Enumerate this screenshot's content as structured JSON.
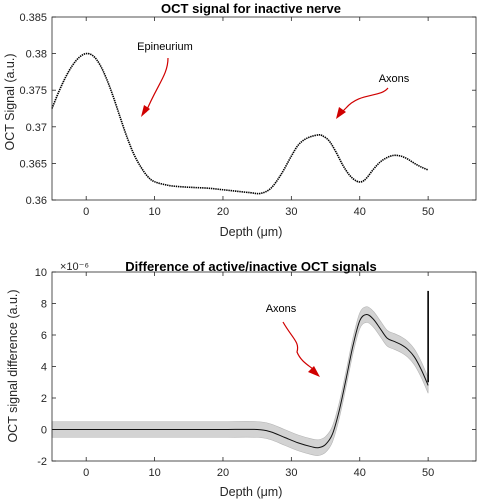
{
  "chart_data": [
    {
      "type": "line",
      "title": "OCT signal for inactive nerve",
      "xlabel": "Depth (μm)",
      "ylabel": "OCT Signal (a.u.)",
      "xlim": [
        -5,
        57
      ],
      "ylim": [
        0.36,
        0.385
      ],
      "xticks": [
        0,
        10,
        20,
        30,
        40,
        50
      ],
      "yticks": [
        0.36,
        0.365,
        0.37,
        0.375,
        0.38,
        0.385
      ],
      "ytick_labels": [
        "0.36",
        "0.365",
        "0.37",
        "0.375",
        "0.38",
        "0.385"
      ],
      "series": [
        {
          "x": [
            -5,
            -4,
            -3,
            -2,
            -1,
            0,
            1,
            2,
            3,
            4,
            5,
            6,
            7,
            8,
            9,
            10,
            12,
            14,
            16,
            18,
            20,
            22,
            24,
            25.5,
            27,
            28.5,
            30,
            31,
            32,
            33,
            34,
            34.5,
            35.5,
            36.5,
            37.5,
            38.5,
            39.5,
            40.3,
            41,
            42,
            43,
            44,
            45,
            46,
            47,
            48,
            49,
            50
          ],
          "values": [
            0.3725,
            0.3748,
            0.3768,
            0.3784,
            0.3795,
            0.38,
            0.3797,
            0.3785,
            0.3765,
            0.374,
            0.3712,
            0.3685,
            0.3662,
            0.3645,
            0.3632,
            0.3625,
            0.362,
            0.3618,
            0.3617,
            0.3616,
            0.3614,
            0.3612,
            0.361,
            0.3609,
            0.3616,
            0.3635,
            0.366,
            0.3675,
            0.3683,
            0.3687,
            0.3689,
            0.3688,
            0.3681,
            0.3666,
            0.3648,
            0.3634,
            0.3626,
            0.3625,
            0.363,
            0.3642,
            0.3652,
            0.3658,
            0.3661,
            0.366,
            0.3656,
            0.365,
            0.3645,
            0.3641
          ]
        }
      ],
      "annotations": [
        {
          "text": "Epineurium",
          "x": 8,
          "y": 0.3798
        },
        {
          "text": "Axons",
          "x": 43.5,
          "y": 0.3754
        }
      ]
    },
    {
      "type": "line",
      "title": "Difference of active/inactive OCT signals",
      "xlabel": "Depth (μm)",
      "ylabel": "OCT signal difference (a.u.)",
      "y_exponent": "×10⁻⁶",
      "xlim": [
        -5,
        57
      ],
      "ylim": [
        -2,
        10
      ],
      "xticks": [
        0,
        10,
        20,
        30,
        40,
        50
      ],
      "yticks": [
        -2,
        0,
        2,
        4,
        6,
        8,
        10
      ],
      "ytick_labels": [
        "-2",
        "0",
        "2",
        "4",
        "6",
        "8",
        "10"
      ],
      "series": [
        {
          "x": [
            -5,
            0,
            5,
            10,
            15,
            20,
            25,
            27,
            29,
            31,
            33,
            34,
            35,
            36,
            37,
            38,
            39,
            40,
            41,
            42,
            43,
            44,
            45,
            46,
            47,
            48,
            49,
            50
          ],
          "values": [
            0,
            0,
            0,
            0,
            0,
            0,
            0,
            -0.15,
            -0.5,
            -0.85,
            -1.1,
            -1.15,
            -0.95,
            -0.3,
            1.2,
            3.2,
            5.3,
            6.9,
            7.3,
            7.0,
            6.4,
            5.8,
            5.6,
            5.4,
            5.1,
            4.6,
            3.8,
            2.8
          ],
          "band": 0.5
        }
      ],
      "annotations": [
        {
          "text": "Axons",
          "x": 30,
          "y": 7.8
        }
      ]
    }
  ]
}
